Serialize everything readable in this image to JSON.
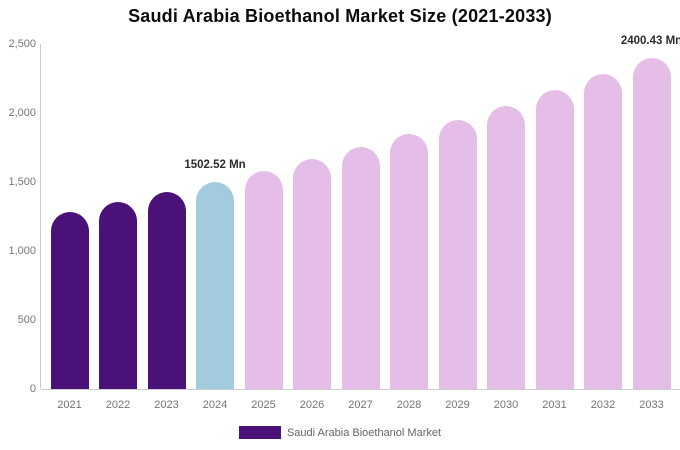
{
  "chart_data": {
    "type": "bar",
    "title": "Saudi Arabia Bioethanol Market Size (2021-2033)",
    "unit": "Mn",
    "categories": [
      "2021",
      "2022",
      "2023",
      "2024",
      "2025",
      "2026",
      "2027",
      "2028",
      "2029",
      "2030",
      "2031",
      "2032",
      "2033"
    ],
    "series": [
      {
        "name": "Saudi Arabia Bioethanol Market",
        "values": [
          1285,
          1354,
          1426,
          1502.52,
          1583,
          1668,
          1757,
          1851,
          1950,
          2054,
          2164,
          2280,
          2400.43
        ]
      }
    ],
    "bar_colors": [
      "#4A1179",
      "#4A1179",
      "#4A1179",
      "#A2CBDE",
      "#E5BEE8",
      "#E5BEE8",
      "#E5BEE8",
      "#E5BEE8",
      "#E5BEE8",
      "#E5BEE8",
      "#E5BEE8",
      "#E5BEE8",
      "#E5BEE8"
    ],
    "annotations": [
      {
        "category": "2024",
        "text": "1502.52 Mn"
      },
      {
        "category": "2033",
        "text": "2400.43 Mn"
      }
    ],
    "y_axis": {
      "max": 2500,
      "tick_values": [
        0,
        500,
        1000,
        1500,
        2000,
        2500
      ],
      "tick_labels": [
        "0",
        "500",
        "1,000",
        "1,500",
        "2,000",
        "2,500"
      ]
    },
    "xlabel": "",
    "ylabel": "",
    "grid": false,
    "legend_position": "bottom",
    "legend": [
      {
        "label": "Saudi Arabia Bioethanol Market",
        "color": "#4A1179"
      }
    ]
  },
  "colors": {
    "background": "#FFFFFF",
    "axis_line": "#CCCCCC",
    "axis_text": "#757575",
    "title_text": "#0D0D0D",
    "annotation_text": "#2D2D2D",
    "legend_text": "#666666",
    "past_bars": "#4A1179",
    "current_year_bar": "#A2CBDE",
    "forecast_bars": "#E5BEE8"
  }
}
